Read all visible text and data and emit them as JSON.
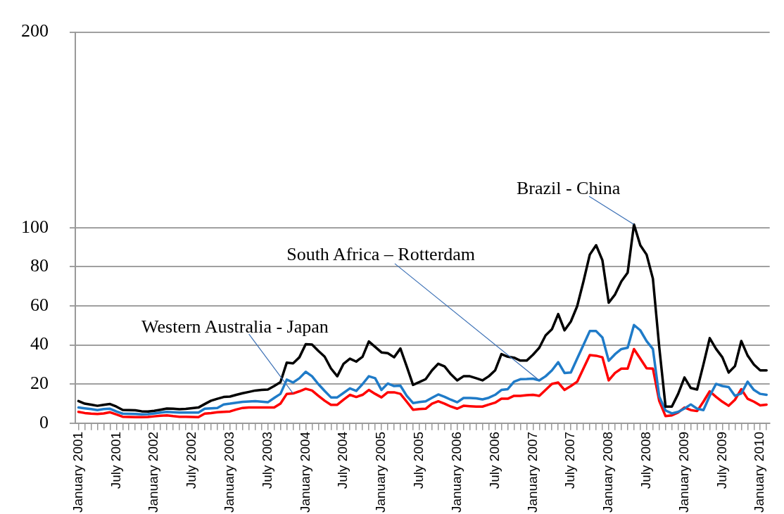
{
  "chart_data": {
    "type": "line",
    "categories": [
      "January 2001",
      null,
      null,
      null,
      null,
      null,
      "July 2001",
      null,
      null,
      null,
      null,
      null,
      "January 2002",
      null,
      null,
      null,
      null,
      null,
      "July 2002",
      null,
      null,
      null,
      null,
      null,
      "January 2003",
      null,
      null,
      null,
      null,
      null,
      "July 2003",
      null,
      null,
      null,
      null,
      null,
      "January 2004",
      null,
      null,
      null,
      null,
      null,
      "July 2004",
      null,
      null,
      null,
      null,
      null,
      "January 2005",
      null,
      null,
      null,
      null,
      null,
      "July 2005",
      null,
      null,
      null,
      null,
      null,
      "January 2006",
      null,
      null,
      null,
      null,
      null,
      "July 2006",
      null,
      null,
      null,
      null,
      null,
      "January 2007",
      null,
      null,
      null,
      null,
      null,
      "July 2007",
      null,
      null,
      null,
      null,
      null,
      "January 2008",
      null,
      null,
      null,
      null,
      null,
      "July 2008",
      null,
      null,
      null,
      null,
      null,
      "January 2009",
      null,
      null,
      null,
      null,
      null,
      "July 2009",
      null,
      null,
      null,
      null,
      null,
      "January 2010",
      null
    ],
    "series": [
      {
        "name": "Brazil - China",
        "color": "#000000",
        "values": [
          11.3,
          10,
          9.5,
          8.9,
          9.4,
          9.8,
          8.5,
          6.8,
          6.7,
          6.6,
          6.1,
          6,
          6.3,
          6.9,
          7.5,
          7.4,
          7.1,
          7.3,
          7.7,
          8,
          9.8,
          11.5,
          12.5,
          13.4,
          13.6,
          14.5,
          15.3,
          16,
          16.7,
          17,
          17.2,
          19,
          21,
          31,
          30.6,
          33.7,
          40.4,
          40.2,
          37,
          34,
          28,
          24,
          30.4,
          33,
          31.5,
          34,
          41.8,
          39,
          36.2,
          35.8,
          33.7,
          38.2,
          29,
          19.6,
          21,
          22.5,
          27,
          30.4,
          29,
          25,
          21.9,
          24,
          24,
          23,
          21.9,
          24,
          27,
          35.3,
          34,
          33.5,
          32,
          32,
          35,
          38.6,
          44.9,
          48,
          55.8,
          47.5,
          52,
          59.8,
          72.5,
          86.2,
          91,
          83.3,
          61.6,
          65.8,
          72.5,
          77,
          101.6,
          91,
          86.2,
          73.9,
          39,
          8.5,
          8.5,
          15,
          23.4,
          18,
          17.2,
          30,
          43.5,
          38,
          33.7,
          25.9,
          29.2,
          42,
          34.6,
          30,
          27,
          27
        ]
      },
      {
        "name": "South Africa – Rotterdam",
        "color": "#1f7bc8",
        "values": [
          8,
          7.6,
          7.2,
          6.7,
          7.2,
          7.4,
          6,
          4.9,
          4.8,
          4.7,
          4.5,
          4.6,
          5,
          5.4,
          5.8,
          5.6,
          5.4,
          5.4,
          5.4,
          5.4,
          7.4,
          7.6,
          7.8,
          9.6,
          10,
          10.5,
          10.9,
          11.1,
          11.3,
          11,
          10.7,
          12.9,
          15,
          22.3,
          20.8,
          23,
          26.3,
          24,
          20,
          16.5,
          13.2,
          13.2,
          15.5,
          17.8,
          16.5,
          20,
          24,
          23,
          17,
          20.3,
          19,
          19.2,
          14,
          10.3,
          10.8,
          11.2,
          13,
          14.7,
          13.5,
          12,
          10.7,
          12.9,
          12.9,
          12.7,
          12.2,
          13,
          14.5,
          17,
          17.4,
          21.2,
          22.5,
          22.6,
          22.8,
          21.9,
          24,
          27,
          31.2,
          25.7,
          25.9,
          33,
          40,
          47.1,
          47.1,
          43.8,
          31.9,
          35.3,
          37.9,
          38.6,
          50.2,
          47.5,
          42,
          37.9,
          13.6,
          6.5,
          5,
          5.8,
          7.5,
          9.6,
          7.4,
          6.7,
          14,
          20.1,
          19,
          18.5,
          14,
          15.2,
          21.2,
          17,
          15,
          14.5
        ]
      },
      {
        "name": "Western Australia - Japan",
        "color": "#ff0000",
        "values": [
          5.8,
          5.2,
          4.9,
          4.7,
          5,
          5.6,
          4.5,
          3.3,
          3.2,
          3.1,
          3.1,
          3.2,
          3.5,
          3.8,
          4,
          3.6,
          3.3,
          3.3,
          3.2,
          3.1,
          4.9,
          5.2,
          5.6,
          5.8,
          6,
          7,
          7.8,
          8,
          8,
          8,
          8,
          8,
          10,
          15,
          15.2,
          16.3,
          17.6,
          16.7,
          14,
          11.5,
          9.4,
          9.4,
          12,
          14.5,
          13.4,
          14.5,
          17,
          15,
          13.2,
          15.8,
          15.8,
          15,
          11,
          6.9,
          7.2,
          7.4,
          10,
          11.2,
          10,
          8.5,
          7.4,
          8.9,
          8.7,
          8.5,
          8.5,
          9.5,
          10.5,
          12.5,
          12.5,
          14,
          14,
          14.3,
          14.5,
          14,
          17,
          20.1,
          20.8,
          17,
          19,
          21.2,
          28,
          34.8,
          34.5,
          33.7,
          21.9,
          25.7,
          27.9,
          27.9,
          37.9,
          33,
          28.1,
          27.9,
          11.4,
          3.6,
          4,
          5.5,
          8,
          6.7,
          6.2,
          11,
          16.3,
          13.5,
          11,
          8.9,
          12,
          17.4,
          12.5,
          11,
          9.1,
          9.5
        ]
      }
    ],
    "ylim": [
      0,
      200
    ],
    "yticks": [
      0,
      20,
      40,
      60,
      80,
      100,
      200
    ],
    "grid": "y",
    "legend": false,
    "marker": "none",
    "line_style": "solid"
  }
}
